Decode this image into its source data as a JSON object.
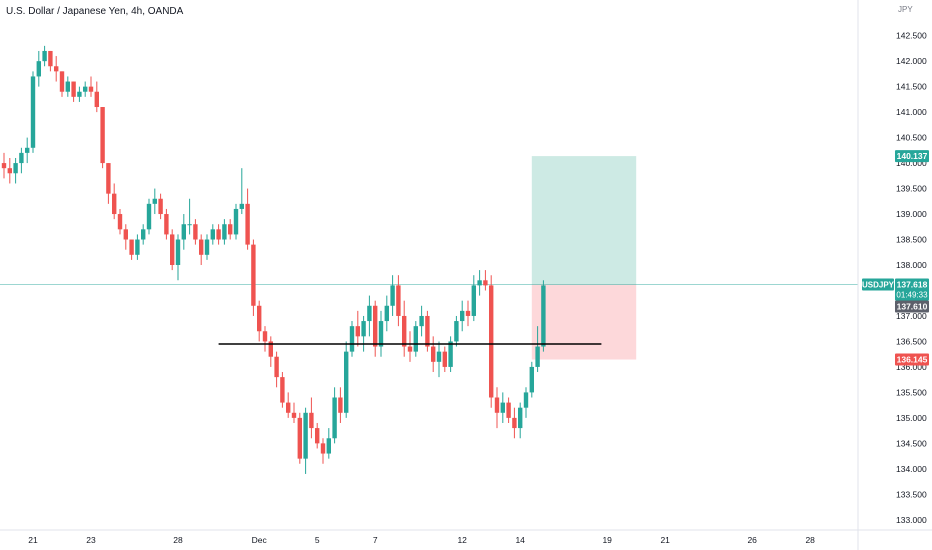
{
  "header": {
    "title": "U.S. Dollar / Japanese Yen, 4h, OANDA"
  },
  "axis": {
    "currency": "JPY"
  },
  "chart_data": {
    "type": "candlestick",
    "symbol": "USDJPY",
    "timeframe": "4h",
    "source": "OANDA",
    "ylim": [
      132.8,
      143.2
    ],
    "y_ticks": [
      "133.000",
      "133.500",
      "134.000",
      "134.500",
      "135.000",
      "135.500",
      "136.000",
      "136.500",
      "137.000",
      "137.500",
      "138.000",
      "138.500",
      "139.000",
      "139.500",
      "140.000",
      "140.500",
      "141.000",
      "141.500",
      "142.000",
      "142.500"
    ],
    "x_ticks": [
      {
        "label": "21",
        "index": 5
      },
      {
        "label": "23",
        "index": 15
      },
      {
        "label": "28",
        "index": 30
      },
      {
        "label": "Dec",
        "index": 44
      },
      {
        "label": "5",
        "index": 54
      },
      {
        "label": "7",
        "index": 64
      },
      {
        "label": "12",
        "index": 79
      },
      {
        "label": "14",
        "index": 89
      },
      {
        "label": "19",
        "index": 104
      },
      {
        "label": "21",
        "index": 114
      },
      {
        "label": "26",
        "index": 129
      },
      {
        "label": "28",
        "index": 139
      }
    ],
    "candles": [
      [
        140.0,
        140.2,
        139.7,
        139.9
      ],
      [
        139.9,
        140.1,
        139.6,
        139.8
      ],
      [
        139.8,
        140.1,
        139.6,
        140.0
      ],
      [
        140.0,
        140.3,
        139.8,
        140.2
      ],
      [
        140.2,
        140.5,
        140.0,
        140.3
      ],
      [
        140.3,
        141.8,
        140.2,
        141.7
      ],
      [
        141.7,
        142.2,
        141.5,
        142.0
      ],
      [
        142.0,
        142.3,
        141.9,
        142.2
      ],
      [
        142.2,
        142.2,
        141.8,
        141.9
      ],
      [
        141.9,
        142.1,
        141.6,
        141.8
      ],
      [
        141.8,
        141.8,
        141.3,
        141.4
      ],
      [
        141.4,
        141.7,
        141.3,
        141.6
      ],
      [
        141.6,
        141.6,
        141.2,
        141.3
      ],
      [
        141.3,
        141.5,
        141.2,
        141.4
      ],
      [
        141.4,
        141.6,
        141.3,
        141.5
      ],
      [
        141.5,
        141.7,
        141.3,
        141.4
      ],
      [
        141.4,
        141.6,
        141.0,
        141.1
      ],
      [
        141.1,
        141.1,
        139.9,
        140.0
      ],
      [
        140.0,
        140.0,
        139.2,
        139.4
      ],
      [
        139.4,
        139.6,
        138.9,
        139.0
      ],
      [
        139.0,
        139.1,
        138.6,
        138.7
      ],
      [
        138.7,
        138.8,
        138.3,
        138.5
      ],
      [
        138.5,
        138.5,
        138.1,
        138.2
      ],
      [
        138.2,
        138.6,
        138.1,
        138.5
      ],
      [
        138.5,
        138.8,
        138.4,
        138.7
      ],
      [
        138.7,
        139.3,
        138.6,
        139.2
      ],
      [
        139.2,
        139.5,
        139.0,
        139.3
      ],
      [
        139.3,
        139.4,
        138.9,
        139.0
      ],
      [
        139.0,
        139.1,
        138.5,
        138.6
      ],
      [
        138.6,
        138.7,
        137.9,
        138.0
      ],
      [
        138.0,
        138.6,
        137.7,
        138.5
      ],
      [
        138.5,
        139.0,
        138.3,
        138.8
      ],
      [
        138.8,
        139.3,
        138.6,
        138.8
      ],
      [
        138.8,
        138.9,
        138.4,
        138.5
      ],
      [
        138.5,
        138.6,
        138.0,
        138.2
      ],
      [
        138.2,
        138.6,
        138.1,
        138.5
      ],
      [
        138.5,
        138.8,
        138.4,
        138.7
      ],
      [
        138.7,
        138.8,
        138.4,
        138.5
      ],
      [
        138.5,
        138.9,
        138.4,
        138.8
      ],
      [
        138.8,
        138.9,
        138.5,
        138.6
      ],
      [
        138.6,
        139.2,
        138.5,
        139.1
      ],
      [
        139.1,
        139.9,
        139.0,
        139.2
      ],
      [
        139.2,
        139.5,
        138.3,
        138.4
      ],
      [
        138.4,
        138.5,
        137.0,
        137.2
      ],
      [
        137.2,
        137.3,
        136.5,
        136.7
      ],
      [
        136.7,
        136.8,
        136.3,
        136.5
      ],
      [
        136.5,
        136.6,
        136.0,
        136.2
      ],
      [
        136.2,
        136.3,
        135.6,
        135.8
      ],
      [
        135.8,
        135.9,
        135.2,
        135.3
      ],
      [
        135.3,
        135.5,
        135.0,
        135.1
      ],
      [
        135.1,
        135.3,
        134.9,
        135.0
      ],
      [
        135.0,
        135.1,
        134.1,
        134.2
      ],
      [
        134.2,
        135.2,
        133.9,
        135.1
      ],
      [
        135.1,
        135.4,
        134.6,
        134.8
      ],
      [
        134.8,
        134.9,
        134.4,
        134.5
      ],
      [
        134.5,
        134.6,
        134.1,
        134.3
      ],
      [
        134.3,
        134.8,
        134.2,
        134.6
      ],
      [
        134.6,
        135.6,
        134.5,
        135.4
      ],
      [
        135.4,
        135.6,
        134.9,
        135.1
      ],
      [
        135.1,
        136.5,
        135.0,
        136.3
      ],
      [
        136.3,
        136.9,
        136.2,
        136.8
      ],
      [
        136.8,
        137.1,
        136.4,
        136.6
      ],
      [
        136.6,
        137.0,
        136.3,
        136.9
      ],
      [
        136.9,
        137.4,
        136.6,
        137.2
      ],
      [
        137.2,
        137.3,
        136.2,
        136.4
      ],
      [
        136.4,
        137.1,
        136.2,
        136.9
      ],
      [
        136.9,
        137.4,
        136.7,
        137.2
      ],
      [
        137.2,
        137.8,
        137.0,
        137.6
      ],
      [
        137.6,
        137.8,
        136.8,
        137.0
      ],
      [
        137.0,
        137.3,
        136.2,
        136.4
      ],
      [
        136.4,
        136.7,
        136.1,
        136.3
      ],
      [
        136.3,
        136.9,
        136.2,
        136.8
      ],
      [
        136.8,
        137.2,
        136.6,
        137.0
      ],
      [
        137.0,
        137.1,
        136.3,
        136.4
      ],
      [
        136.4,
        136.6,
        135.9,
        136.1
      ],
      [
        136.1,
        136.5,
        135.8,
        136.3
      ],
      [
        136.3,
        136.4,
        135.9,
        136.0
      ],
      [
        136.0,
        136.6,
        135.9,
        136.5
      ],
      [
        136.5,
        137.0,
        136.4,
        136.9
      ],
      [
        136.9,
        137.3,
        136.7,
        137.1
      ],
      [
        137.1,
        137.3,
        136.8,
        137.0
      ],
      [
        137.0,
        137.8,
        136.9,
        137.6
      ],
      [
        137.6,
        137.9,
        137.4,
        137.7
      ],
      [
        137.7,
        137.9,
        137.5,
        137.6
      ],
      [
        137.6,
        137.8,
        135.2,
        135.4
      ],
      [
        135.4,
        135.6,
        134.8,
        135.1
      ],
      [
        135.1,
        135.5,
        134.9,
        135.3
      ],
      [
        135.3,
        135.4,
        134.9,
        135.0
      ],
      [
        135.0,
        135.2,
        134.6,
        134.8
      ],
      [
        134.8,
        135.3,
        134.6,
        135.2
      ],
      [
        135.2,
        135.6,
        135.0,
        135.5
      ],
      [
        135.5,
        136.1,
        135.4,
        136.0
      ],
      [
        136.0,
        136.8,
        135.9,
        136.4
      ],
      [
        136.4,
        137.7,
        136.3,
        137.6
      ]
    ],
    "support_line": {
      "price": 136.45,
      "from_index": 37,
      "to_index": 103
    },
    "position": {
      "type": "long",
      "entry": 137.618,
      "target": 140.137,
      "stop": 136.145,
      "from_index": 91,
      "to_index": 109,
      "profit_color": "#cdeae4",
      "loss_color": "#fdd8da"
    },
    "labels": {
      "symbol": "USDJPY",
      "last_price": "137.618",
      "countdown": "01:49:33",
      "bid": "137.610",
      "target": "140.137",
      "stop": "136.145"
    },
    "colors": {
      "up": "#26a69a",
      "down": "#ef5350",
      "price_line": "#26a69a",
      "target_label": "#26a69a",
      "stop_label": "#ef5350",
      "bid_label": "#5d606b",
      "support": "#000000",
      "axis_text": "#131722"
    }
  }
}
